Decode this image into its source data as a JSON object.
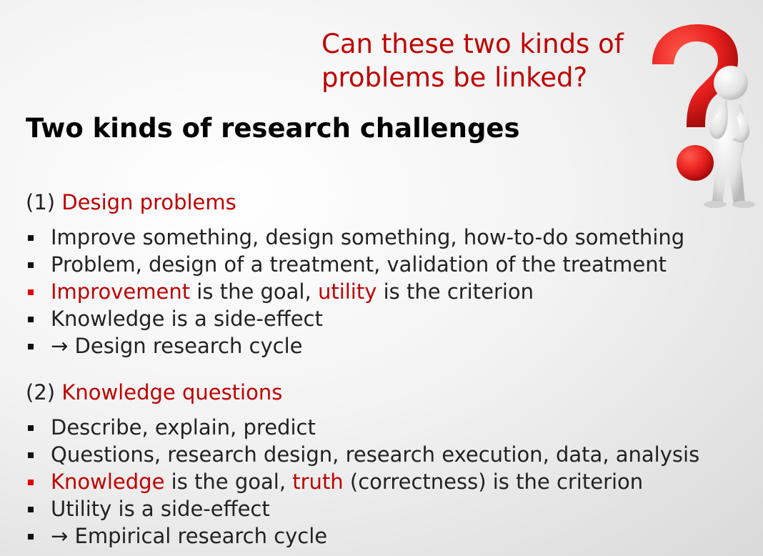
{
  "question": {
    "line1": "Can these two kinds of",
    "line2": "problems be linked?"
  },
  "title": "Two kinds of research challenges",
  "sections": [
    {
      "number": "(1)",
      "heading": "Design problems",
      "bullets": [
        "Improve something, design something, how-to-do something",
        "Problem, design of a treatment, validation of the treatment",
        {
          "a": "Improvement",
          "b": " is the goal, ",
          "c": "utility",
          "d": " is the criterion"
        },
        "Knowledge is a side-effect",
        "→ Design research cycle"
      ]
    },
    {
      "number": "(2)",
      "heading": "Knowledge questions",
      "bullets": [
        "Describe, explain, predict",
        "Questions, research design, research execution, data, analysis",
        {
          "a": "Knowledge",
          "b": " is the goal, ",
          "c": "truth",
          "d": " (correctness) is the criterion"
        },
        "Utility is a side-effect",
        "→ Empirical research cycle"
      ]
    }
  ],
  "colors": {
    "accent": "#c00000",
    "bullet_highlight": "#e00000",
    "question_mark": "#e8201f",
    "figure": "#e6e6e6"
  },
  "figure_icon": "thinking-figure-with-question-mark-icon"
}
